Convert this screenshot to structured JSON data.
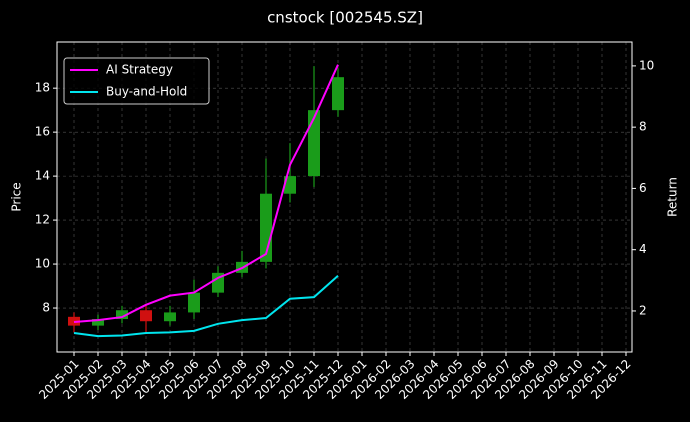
{
  "chart_data": {
    "type": "candlestick",
    "title": "cnstock [002545.SZ]",
    "y_label": "Price",
    "y2_label": "Return",
    "x": [
      "2025-01",
      "2025-02",
      "2025-03",
      "2025-04",
      "2025-05",
      "2025-06",
      "2025-07",
      "2025-08",
      "2025-09",
      "2025-10",
      "2025-11",
      "2025-12"
    ],
    "xticks": [
      "2025-01",
      "2025-02",
      "2025-03",
      "2025-04",
      "2025-05",
      "2025-06",
      "2025-07",
      "2025-08",
      "2025-09",
      "2025-10",
      "2025-11",
      "2025-12",
      "2026-01",
      "2026-02",
      "2026-03",
      "2026-04",
      "2026-05",
      "2026-06",
      "2026-07",
      "2026-08",
      "2026-09",
      "2026-10",
      "2026-11",
      "2026-12"
    ],
    "open": [
      7.6,
      7.2,
      7.5,
      7.9,
      7.4,
      7.8,
      8.7,
      9.6,
      10.1,
      13.2,
      14.0,
      17.0
    ],
    "high": [
      7.8,
      7.7,
      8.1,
      8.2,
      8.1,
      9.3,
      9.9,
      10.6,
      14.8,
      15.5,
      19.0,
      18.9
    ],
    "low": [
      6.9,
      7.0,
      7.3,
      6.9,
      7.2,
      7.5,
      8.5,
      9.4,
      9.8,
      12.8,
      13.5,
      16.7
    ],
    "close": [
      7.2,
      7.5,
      7.9,
      7.4,
      7.8,
      8.7,
      9.6,
      10.1,
      13.2,
      14.0,
      17.0,
      18.5
    ],
    "up_color": "#1a9c1a",
    "down_color": "#d01010",
    "series": [
      {
        "name": "AI Strategy",
        "color": "#ff00ff",
        "axis": "y2",
        "values": [
          1.64,
          1.7,
          1.8,
          2.2,
          2.5,
          2.6,
          3.08,
          3.4,
          3.86,
          6.77,
          8.3,
          10.04
        ]
      },
      {
        "name": "Buy-and-Hold",
        "color": "#00e5ee",
        "axis": "y2",
        "values": [
          1.28,
          1.18,
          1.2,
          1.28,
          1.3,
          1.35,
          1.58,
          1.7,
          1.77,
          2.4,
          2.45,
          3.15
        ]
      }
    ],
    "ylim": [
      6.0,
      20.1
    ],
    "yticks": [
      8,
      10,
      12,
      14,
      16,
      18
    ],
    "y2lim": [
      0.66,
      10.78
    ],
    "y2ticks": [
      2,
      4,
      6,
      8,
      10
    ],
    "grid": true,
    "legend": "upper left"
  }
}
